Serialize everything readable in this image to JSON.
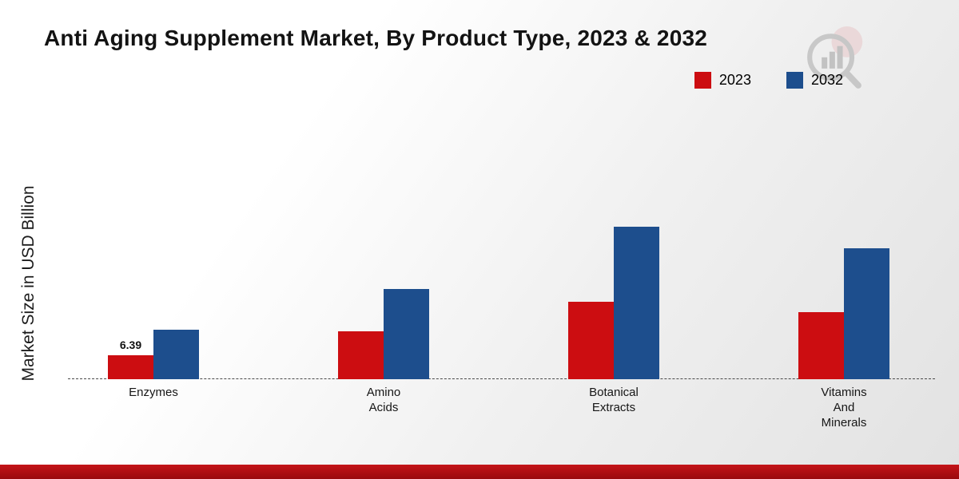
{
  "header": {
    "title": "Anti Aging Supplement Market, By Product Type, 2023 & 2032"
  },
  "watermark": {
    "icon": "magnifier-bar-chart-logo"
  },
  "footer": {
    "bar_color": "#a80f13"
  },
  "chart_data": {
    "type": "bar",
    "title": "Anti Aging Supplement Market, By Product Type, 2023 & 2032",
    "xlabel": "",
    "ylabel": "Market Size in USD Billion",
    "categories": [
      "Enzymes",
      "Amino\nAcids",
      "Botanical\nExtracts",
      "Vitamins\nAnd\nMinerals"
    ],
    "series": [
      {
        "name": "2023",
        "color": "#cc0d11",
        "values": [
          6.39,
          12.8,
          20.7,
          17.9
        ],
        "value_labels": [
          "6.39",
          "",
          "",
          ""
        ]
      },
      {
        "name": "2032",
        "color": "#1d4e8d",
        "values": [
          13.2,
          24.1,
          40.7,
          35.0
        ],
        "value_labels": [
          "",
          "",
          "",
          ""
        ]
      }
    ],
    "ylim": [
      0,
      45
    ],
    "grid": false,
    "legend_position": "top-right",
    "baseline_style": "dashed",
    "units": "USD Billion"
  }
}
